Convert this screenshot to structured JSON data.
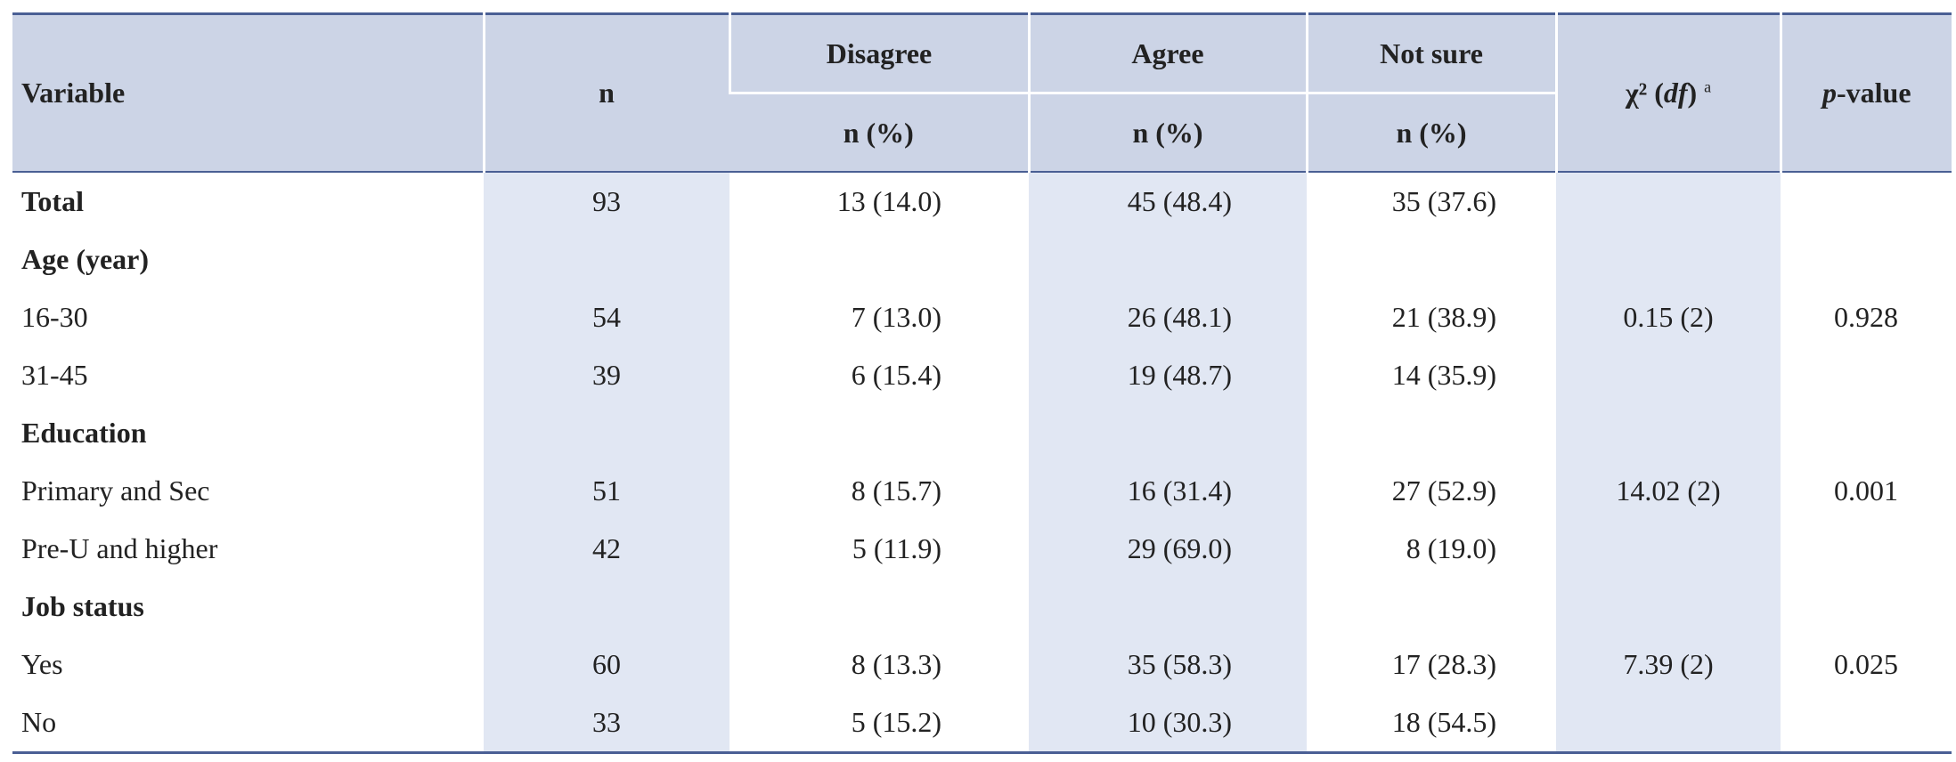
{
  "table": {
    "header": {
      "variable": "Variable",
      "n": "n",
      "groups": [
        "Disagree",
        "Agree",
        "Not sure"
      ],
      "subheaders": [
        "n (%)",
        "n (%)",
        "n (%)"
      ],
      "chi": [
        "χ² (",
        "df",
        ")"
      ],
      "chi_note": "a",
      "p": [
        "p",
        "-value"
      ]
    },
    "rows": [
      {
        "label": "Total",
        "bold": true,
        "cells": [
          "93",
          "13 (14.0)",
          "45 (48.4)",
          "35 (37.6)",
          null,
          null
        ]
      },
      {
        "label": "Age (year)",
        "bold": true,
        "cells": [
          null,
          null,
          null,
          null,
          null,
          null
        ]
      },
      {
        "label": "16-30",
        "bold": false,
        "cells": [
          "54",
          "7 (13.0)",
          "26 (48.1)",
          "21 (38.9)",
          "0.15 (2)",
          "0.928"
        ]
      },
      {
        "label": "31-45",
        "bold": false,
        "cells": [
          "39",
          "6 (15.4)",
          "19 (48.7)",
          "14 (35.9)",
          null,
          null
        ]
      },
      {
        "label": "Education",
        "bold": true,
        "cells": [
          null,
          null,
          null,
          null,
          null,
          null
        ]
      },
      {
        "label": "Primary and Sec",
        "bold": false,
        "cells": [
          "51",
          "8 (15.7)",
          "16 (31.4)",
          "27 (52.9)",
          "14.02 (2)",
          "0.001"
        ]
      },
      {
        "label": "Pre-U and higher",
        "bold": false,
        "cells": [
          "42",
          "5 (11.9)",
          "29 (69.0)",
          "8 (19.0)",
          null,
          null
        ]
      },
      {
        "label": "Job status",
        "bold": true,
        "cells": [
          null,
          null,
          null,
          null,
          null,
          null
        ]
      },
      {
        "label": "Yes",
        "bold": false,
        "cells": [
          "60",
          "8 (13.3)",
          "35 (58.3)",
          "17 (28.3)",
          "7.39 (2)",
          "0.025"
        ]
      },
      {
        "label": "No",
        "bold": false,
        "cells": [
          "33",
          "5 (15.2)",
          "10 (30.3)",
          "18 (54.5)",
          null,
          null
        ]
      }
    ]
  }
}
